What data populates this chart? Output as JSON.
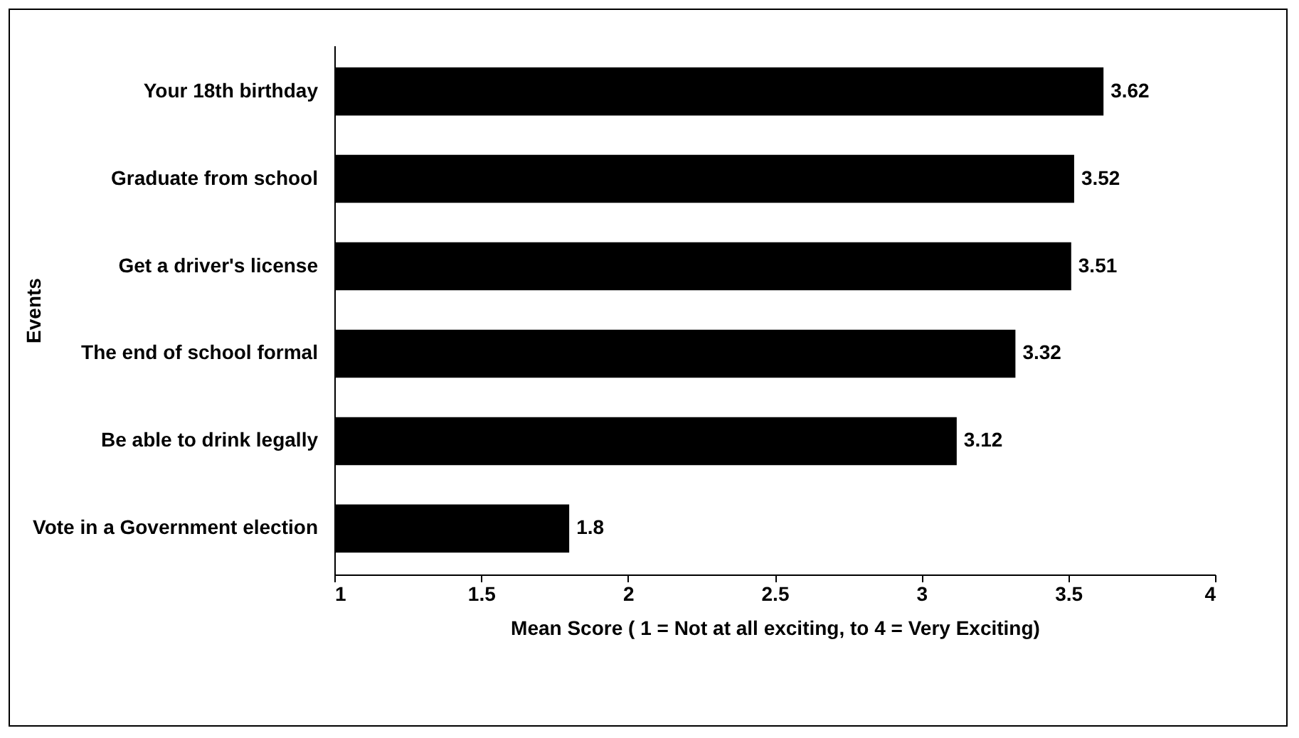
{
  "chart_data": {
    "type": "bar",
    "orientation": "horizontal",
    "xlabel": "Mean Score ( 1 = Not at all exciting, to 4 = Very Exciting)",
    "ylabel": "Events",
    "categories": [
      "Your 18th birthday",
      "Graduate from school",
      "Get a driver's license",
      "The end of school formal",
      "Be able to drink legally",
      "Vote in a Government election"
    ],
    "values": [
      3.62,
      3.52,
      3.51,
      3.32,
      3.12,
      1.8
    ],
    "color": "#000000",
    "data_labels": true,
    "grid": false,
    "xlim": [
      1,
      4
    ],
    "xticks": [
      1,
      1.5,
      2,
      2.5,
      3,
      3.5,
      4
    ]
  }
}
